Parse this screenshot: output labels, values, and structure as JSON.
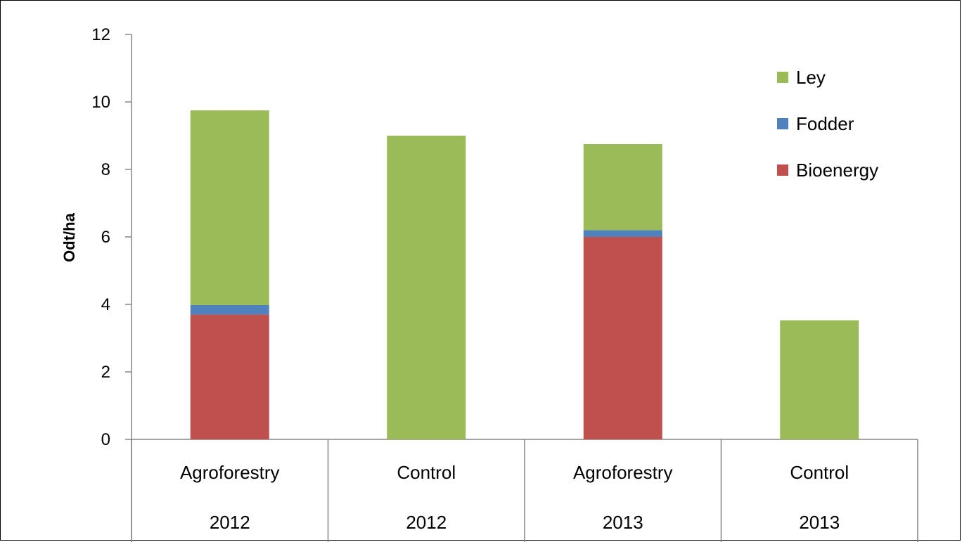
{
  "chart_data": {
    "type": "bar",
    "stacked": true,
    "categories": [
      "Agroforestry",
      "Control",
      "Agroforestry",
      "Control"
    ],
    "category_years": [
      "2012",
      "2012",
      "2013",
      "2013"
    ],
    "series": [
      {
        "name": "Bioenergy",
        "color": "#c0504d",
        "values": [
          3.7,
          0,
          6.0,
          0
        ]
      },
      {
        "name": "Fodder",
        "color": "#4f81bd",
        "values": [
          0.28,
          0,
          0.2,
          0
        ]
      },
      {
        "name": "Ley",
        "color": "#9bbb59",
        "values": [
          5.77,
          9.0,
          2.55,
          3.53
        ]
      }
    ],
    "legend": [
      "Ley",
      "Fodder",
      "Bioenergy"
    ],
    "legend_position": "top-right",
    "ylabel": "Odt/ha",
    "xlabel": "",
    "ylim": [
      0,
      12
    ],
    "yticks": [
      "0",
      "2",
      "4",
      "6",
      "8",
      "10",
      "12"
    ],
    "grid": false
  }
}
